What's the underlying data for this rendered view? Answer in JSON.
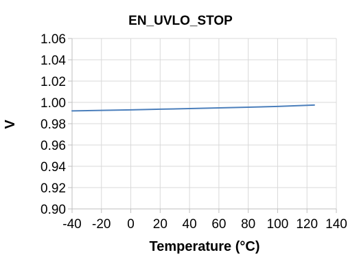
{
  "chart_data": {
    "type": "line",
    "title": "EN_UVLO_STOP",
    "xlabel": "Temperature (°C)",
    "ylabel": "V",
    "xlim": [
      -40,
      140
    ],
    "ylim": [
      0.9,
      1.06
    ],
    "x_ticks": [
      -40,
      -20,
      0,
      20,
      40,
      60,
      80,
      100,
      120,
      140
    ],
    "x_tick_labels": [
      "-40",
      "-20",
      "0",
      "20",
      "40",
      "60",
      "80",
      "100",
      "120",
      "140"
    ],
    "y_ticks": [
      0.9,
      0.92,
      0.94,
      0.96,
      0.98,
      1.0,
      1.02,
      1.04,
      1.06
    ],
    "y_tick_labels": [
      "0.90",
      "0.92",
      "0.94",
      "0.96",
      "0.98",
      "1.00",
      "1.02",
      "1.04",
      "1.06"
    ],
    "grid": true,
    "series": [
      {
        "color": "#4a7ebb",
        "x": [
          -40,
          -20,
          0,
          20,
          40,
          60,
          80,
          100,
          125
        ],
        "y": [
          0.992,
          0.9925,
          0.993,
          0.9936,
          0.9942,
          0.9948,
          0.9955,
          0.9962,
          0.9975
        ]
      }
    ],
    "colors": {
      "grid": "#d9d9d9",
      "axis": "#bfbfbf",
      "text": "#000000"
    }
  }
}
